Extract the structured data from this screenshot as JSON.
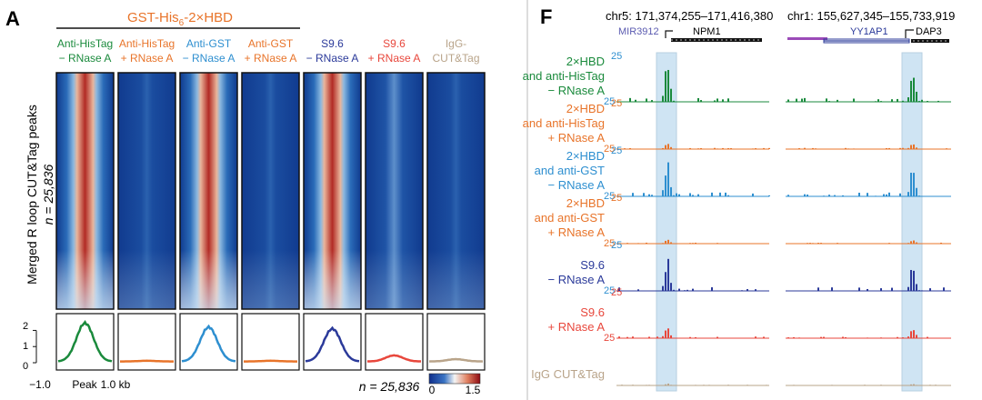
{
  "panelA": {
    "letter": "A",
    "construct": "GST-His",
    "construct_sub": "6",
    "construct_tail": "-2×HBD",
    "ylabel": "Merged R loop CUT&Tag peaks",
    "n_label": "n = 25,836",
    "columns": [
      {
        "l1": "Anti-HisTag",
        "l2": "− RNase A",
        "color": "#1a8a3c",
        "hot": 1.0,
        "peak": 2.45
      },
      {
        "l1": "Anti-HisTag",
        "l2": "+ RNase A",
        "color": "#e8742a",
        "hot": 0.0,
        "peak": 0.12
      },
      {
        "l1": "Anti-GST",
        "l2": "− RNase A",
        "color": "#2e8fd0",
        "hot": 1.0,
        "peak": 2.2
      },
      {
        "l1": "Anti-GST",
        "l2": "+ RNase A",
        "color": "#e8742a",
        "hot": 0.0,
        "peak": 0.12
      },
      {
        "l1": "S9.6",
        "l2": "− RNase A",
        "color": "#2b3a9a",
        "hot": 0.95,
        "peak": 2.1
      },
      {
        "l1": "S9.6",
        "l2": "+ RNase A",
        "color": "#e8473c",
        "hot": 0.15,
        "peak": 0.45
      },
      {
        "l1": "IgG-",
        "l2": "CUT&Tag",
        "color": "#b9a48a",
        "hot": 0.0,
        "peak": 0.22
      }
    ],
    "profile_yticks": [
      "2",
      "1",
      "0"
    ],
    "xaxis": {
      "left": "−1.0",
      "mid": "Peak",
      "right": "1.0 kb"
    },
    "n_bottom": "n = 25,836",
    "colorbar": {
      "min": "0",
      "max": "1.5"
    }
  },
  "panelF": {
    "letter": "F",
    "locus1": "chr5: 171,374,255–171,416,380",
    "locus2": "chr1: 155,627,345–155,733,919",
    "genes": {
      "g1": "MIR3912",
      "g2": "NPM1",
      "g3": "YY1AP1",
      "g4": "DAP3"
    },
    "tracks": [
      {
        "l1": "2×HBD",
        "l2": "and anti-HisTag",
        "l3": "− RNase A",
        "color": "#1a8a3c",
        "scale": "25",
        "amp": 1.0,
        "scale_color": "#2e8fd0"
      },
      {
        "l1": "2×HBD",
        "l2": "and anti-HisTag",
        "l3": "+ RNase A",
        "color": "#e8742a",
        "scale": "25",
        "amp": 0.18,
        "scale_color": "#e8742a"
      },
      {
        "l1": "2×HBD",
        "l2": "and anti-GST",
        "l3": "− RNase A",
        "color": "#2e8fd0",
        "scale": "25",
        "amp": 0.9,
        "scale_color": "#2e8fd0"
      },
      {
        "l1": "2×HBD",
        "l2": "and anti-GST",
        "l3": "+ RNase A",
        "color": "#e8742a",
        "scale": "25",
        "amp": 0.12,
        "scale_color": "#e8742a"
      },
      {
        "l1": "",
        "l2": "S9.6",
        "l3": "− RNase A",
        "color": "#2b3a9a",
        "scale": "25",
        "amp": 0.85,
        "scale_color": "#2e8fd0"
      },
      {
        "l1": "",
        "l2": "S9.6",
        "l3": "+ RNase A",
        "color": "#e8473c",
        "scale": "25",
        "amp": 0.3,
        "scale_color": "#e8473c"
      },
      {
        "l1": "",
        "l2": "",
        "l3": "IgG CUT&Tag",
        "color": "#b9a48a",
        "scale": "",
        "amp": 0.05,
        "scale_color": "#b9a48a"
      }
    ]
  }
}
